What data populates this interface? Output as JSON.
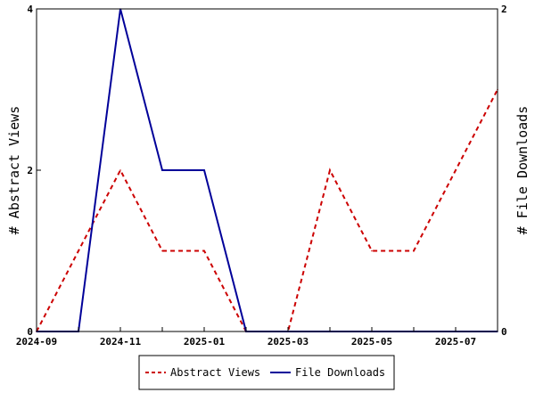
{
  "chart_data": {
    "type": "line",
    "x": [
      "2024-09",
      "2024-10",
      "2024-11",
      "2024-12",
      "2025-01",
      "2025-02",
      "2025-03",
      "2025-04",
      "2025-05",
      "2025-06",
      "2025-07",
      "2025-08"
    ],
    "x_tick_labels": [
      "2024-09",
      "2024-11",
      "2025-01",
      "2025-03",
      "2025-05",
      "2025-07"
    ],
    "series": [
      {
        "name": "Abstract Views",
        "axis": "left",
        "color": "#cc0000",
        "style": "dashed",
        "values": [
          0,
          1,
          2,
          1,
          1,
          0,
          0,
          2,
          1,
          1,
          2,
          3
        ]
      },
      {
        "name": "File Downloads",
        "axis": "right",
        "color": "#000099",
        "style": "solid",
        "values": [
          0,
          0,
          2,
          1,
          1,
          0,
          0,
          0,
          0,
          0,
          0,
          0
        ]
      }
    ],
    "ylabel_left": "# Abstract Views",
    "ylabel_right": "# File Downloads",
    "ylim_left": [
      0,
      4
    ],
    "ylim_right": [
      0,
      2
    ],
    "yticks_left": [
      "0",
      "2",
      "4"
    ],
    "yticks_right": [
      "0",
      "2"
    ],
    "grid": false,
    "legend_position": "bottom"
  }
}
